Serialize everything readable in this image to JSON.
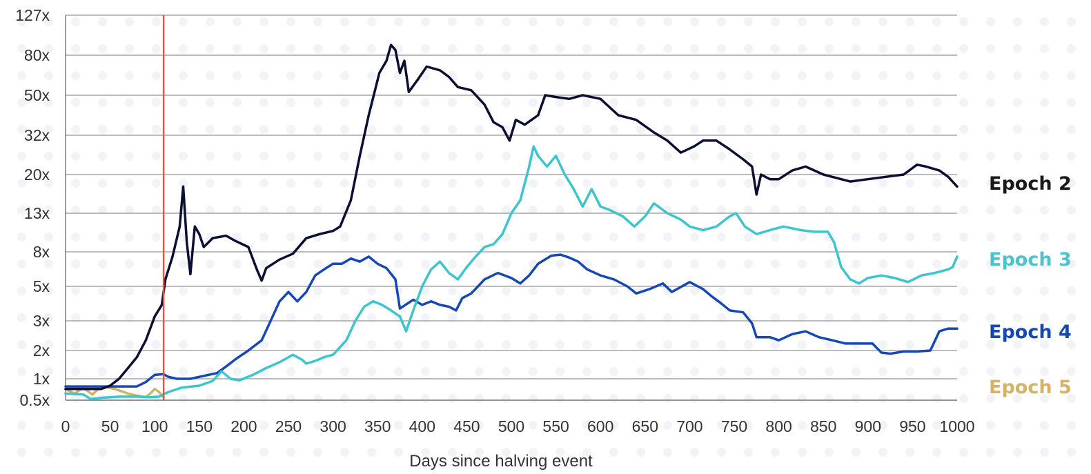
{
  "chart_data": {
    "type": "line",
    "title": "",
    "xlabel": "Days since halving event",
    "ylabel": "",
    "y_scale": "log",
    "xlim": [
      0,
      1000
    ],
    "ylim": [
      0.5,
      127
    ],
    "x_ticks": [
      0,
      50,
      100,
      150,
      200,
      250,
      300,
      350,
      400,
      450,
      500,
      550,
      600,
      650,
      700,
      750,
      800,
      850,
      900,
      950,
      1000
    ],
    "x_tick_labels": [
      "0",
      "50",
      "100",
      "150",
      "200",
      "250",
      "300",
      "350",
      "400",
      "450",
      "500",
      "550",
      "600",
      "650",
      "700",
      "750",
      "800",
      "850",
      "900",
      "950",
      "1000"
    ],
    "y_ticks": [
      0.5,
      1,
      2,
      3,
      5,
      8,
      13,
      20,
      32,
      50,
      80,
      127
    ],
    "y_tick_labels": [
      "0.5x",
      "1x",
      "2x",
      "3x",
      "5x",
      "8x",
      "13x",
      "20x",
      "32x",
      "50x",
      "80x",
      "127x"
    ],
    "grid": true,
    "legend_placement": "right",
    "marker_line": {
      "x": 110,
      "color": "#e05a3a"
    },
    "series": [
      {
        "name": "Epoch 2",
        "color": "#0b0f33",
        "label_color": "#1a1a1a",
        "points": [
          [
            0,
            0.72
          ],
          [
            40,
            0.72
          ],
          [
            50,
            0.8
          ],
          [
            60,
            1.0
          ],
          [
            70,
            1.3
          ],
          [
            80,
            1.7
          ],
          [
            90,
            2.3
          ],
          [
            100,
            3.2
          ],
          [
            108,
            3.8
          ],
          [
            112,
            5.5
          ],
          [
            120,
            7.5
          ],
          [
            128,
            11
          ],
          [
            132,
            17.5
          ],
          [
            136,
            9
          ],
          [
            140,
            5.9
          ],
          [
            145,
            11
          ],
          [
            150,
            10
          ],
          [
            155,
            8.5
          ],
          [
            165,
            9.5
          ],
          [
            180,
            9.8
          ],
          [
            190,
            9.2
          ],
          [
            205,
            8.5
          ],
          [
            215,
            6.2
          ],
          [
            220,
            5.4
          ],
          [
            225,
            6.4
          ],
          [
            240,
            7.2
          ],
          [
            255,
            7.8
          ],
          [
            270,
            9.5
          ],
          [
            285,
            10
          ],
          [
            300,
            10.4
          ],
          [
            308,
            11
          ],
          [
            320,
            15
          ],
          [
            330,
            25
          ],
          [
            340,
            40
          ],
          [
            352,
            65
          ],
          [
            360,
            75
          ],
          [
            365,
            90
          ],
          [
            370,
            85
          ],
          [
            375,
            65
          ],
          [
            380,
            75
          ],
          [
            385,
            52
          ],
          [
            395,
            60
          ],
          [
            405,
            70
          ],
          [
            420,
            67
          ],
          [
            430,
            62
          ],
          [
            440,
            55
          ],
          [
            455,
            53
          ],
          [
            470,
            45
          ],
          [
            480,
            37
          ],
          [
            490,
            35
          ],
          [
            498,
            30
          ],
          [
            505,
            38
          ],
          [
            515,
            36
          ],
          [
            530,
            40
          ],
          [
            538,
            50
          ],
          [
            550,
            49
          ],
          [
            565,
            48
          ],
          [
            580,
            50
          ],
          [
            600,
            48
          ],
          [
            620,
            40
          ],
          [
            640,
            38
          ],
          [
            660,
            33
          ],
          [
            675,
            30
          ],
          [
            690,
            26
          ],
          [
            705,
            28
          ],
          [
            715,
            30
          ],
          [
            730,
            30
          ],
          [
            745,
            27
          ],
          [
            760,
            24
          ],
          [
            770,
            22
          ],
          [
            775,
            16
          ],
          [
            780,
            20
          ],
          [
            790,
            19
          ],
          [
            800,
            19
          ],
          [
            815,
            21
          ],
          [
            830,
            22
          ],
          [
            850,
            20
          ],
          [
            870,
            19
          ],
          [
            880,
            18.5
          ],
          [
            900,
            19
          ],
          [
            920,
            19.5
          ],
          [
            940,
            20
          ],
          [
            955,
            22.5
          ],
          [
            965,
            22
          ],
          [
            980,
            21
          ],
          [
            990,
            19.5
          ],
          [
            1000,
            17.5
          ]
        ]
      },
      {
        "name": "Epoch 3",
        "color": "#3ec4cc",
        "label_color": "#4bc3cd",
        "points": [
          [
            0,
            0.62
          ],
          [
            20,
            0.6
          ],
          [
            28,
            0.52
          ],
          [
            40,
            0.54
          ],
          [
            60,
            0.56
          ],
          [
            80,
            0.56
          ],
          [
            95,
            0.55
          ],
          [
            105,
            0.56
          ],
          [
            115,
            0.65
          ],
          [
            130,
            0.75
          ],
          [
            150,
            0.8
          ],
          [
            165,
            0.93
          ],
          [
            175,
            1.2
          ],
          [
            185,
            1.0
          ],
          [
            195,
            0.95
          ],
          [
            210,
            1.1
          ],
          [
            225,
            1.3
          ],
          [
            240,
            1.5
          ],
          [
            255,
            1.8
          ],
          [
            265,
            1.6
          ],
          [
            270,
            1.45
          ],
          [
            280,
            1.55
          ],
          [
            290,
            1.7
          ],
          [
            300,
            1.8
          ],
          [
            315,
            2.3
          ],
          [
            325,
            3.0
          ],
          [
            335,
            3.7
          ],
          [
            345,
            4.0
          ],
          [
            355,
            3.8
          ],
          [
            365,
            3.5
          ],
          [
            375,
            3.2
          ],
          [
            382,
            2.6
          ],
          [
            390,
            3.5
          ],
          [
            400,
            5.0
          ],
          [
            410,
            6.3
          ],
          [
            420,
            7.0
          ],
          [
            430,
            6.0
          ],
          [
            440,
            5.5
          ],
          [
            450,
            6.5
          ],
          [
            460,
            7.5
          ],
          [
            470,
            8.5
          ],
          [
            480,
            8.8
          ],
          [
            490,
            10
          ],
          [
            500,
            13
          ],
          [
            510,
            15
          ],
          [
            520,
            22
          ],
          [
            525,
            28
          ],
          [
            530,
            25
          ],
          [
            540,
            22
          ],
          [
            550,
            25
          ],
          [
            560,
            20
          ],
          [
            570,
            17
          ],
          [
            580,
            14
          ],
          [
            590,
            17
          ],
          [
            600,
            14
          ],
          [
            610,
            13.5
          ],
          [
            625,
            12.5
          ],
          [
            638,
            11
          ],
          [
            650,
            12.5
          ],
          [
            660,
            14.5
          ],
          [
            675,
            13
          ],
          [
            690,
            12
          ],
          [
            700,
            11
          ],
          [
            715,
            10.5
          ],
          [
            730,
            11
          ],
          [
            745,
            12.5
          ],
          [
            752,
            13
          ],
          [
            762,
            11
          ],
          [
            775,
            10
          ],
          [
            790,
            10.5
          ],
          [
            805,
            11
          ],
          [
            825,
            10.5
          ],
          [
            840,
            10.3
          ],
          [
            855,
            10.3
          ],
          [
            862,
            9
          ],
          [
            870,
            6.5
          ],
          [
            880,
            5.5
          ],
          [
            890,
            5.2
          ],
          [
            900,
            5.6
          ],
          [
            915,
            5.8
          ],
          [
            930,
            5.6
          ],
          [
            945,
            5.3
          ],
          [
            960,
            5.8
          ],
          [
            975,
            6.0
          ],
          [
            990,
            6.3
          ],
          [
            995,
            6.5
          ],
          [
            1000,
            7.5
          ]
        ]
      },
      {
        "name": "Epoch 4",
        "color": "#1548b5",
        "label_color": "#1548b5",
        "points": [
          [
            0,
            0.78
          ],
          [
            20,
            0.78
          ],
          [
            50,
            0.78
          ],
          [
            80,
            0.78
          ],
          [
            90,
            0.9
          ],
          [
            100,
            1.1
          ],
          [
            110,
            1.12
          ],
          [
            115,
            1.05
          ],
          [
            125,
            1.0
          ],
          [
            140,
            1.0
          ],
          [
            160,
            1.1
          ],
          [
            170,
            1.15
          ],
          [
            180,
            1.35
          ],
          [
            190,
            1.6
          ],
          [
            205,
            2.0
          ],
          [
            220,
            2.3
          ],
          [
            230,
            3.0
          ],
          [
            240,
            4.0
          ],
          [
            250,
            4.6
          ],
          [
            260,
            4.0
          ],
          [
            270,
            4.6
          ],
          [
            280,
            5.8
          ],
          [
            290,
            6.3
          ],
          [
            300,
            6.8
          ],
          [
            310,
            6.8
          ],
          [
            320,
            7.3
          ],
          [
            330,
            7.0
          ],
          [
            340,
            7.5
          ],
          [
            350,
            6.8
          ],
          [
            360,
            6.4
          ],
          [
            370,
            5.5
          ],
          [
            375,
            3.6
          ],
          [
            390,
            4.1
          ],
          [
            400,
            3.8
          ],
          [
            410,
            4.0
          ],
          [
            420,
            3.8
          ],
          [
            430,
            3.7
          ],
          [
            438,
            3.5
          ],
          [
            445,
            4.2
          ],
          [
            455,
            4.5
          ],
          [
            470,
            5.5
          ],
          [
            485,
            6.0
          ],
          [
            500,
            5.6
          ],
          [
            510,
            5.2
          ],
          [
            520,
            5.8
          ],
          [
            530,
            6.8
          ],
          [
            545,
            7.6
          ],
          [
            555,
            7.7
          ],
          [
            565,
            7.4
          ],
          [
            575,
            7.0
          ],
          [
            585,
            6.3
          ],
          [
            600,
            5.8
          ],
          [
            615,
            5.5
          ],
          [
            630,
            5.0
          ],
          [
            640,
            4.5
          ],
          [
            655,
            4.8
          ],
          [
            670,
            5.2
          ],
          [
            680,
            4.6
          ],
          [
            700,
            5.3
          ],
          [
            715,
            4.8
          ],
          [
            725,
            4.3
          ],
          [
            735,
            3.9
          ],
          [
            745,
            3.5
          ],
          [
            760,
            3.4
          ],
          [
            770,
            2.9
          ],
          [
            775,
            2.4
          ],
          [
            790,
            2.4
          ],
          [
            800,
            2.3
          ],
          [
            815,
            2.5
          ],
          [
            830,
            2.6
          ],
          [
            845,
            2.4
          ],
          [
            860,
            2.3
          ],
          [
            875,
            2.2
          ],
          [
            890,
            2.2
          ],
          [
            905,
            2.2
          ],
          [
            915,
            1.9
          ],
          [
            925,
            1.85
          ],
          [
            940,
            1.95
          ],
          [
            955,
            1.95
          ],
          [
            970,
            2.0
          ],
          [
            980,
            2.6
          ],
          [
            990,
            2.7
          ],
          [
            1000,
            2.7
          ]
        ]
      },
      {
        "name": "Epoch 5",
        "color": "#d1b463",
        "label_color": "#d4b365",
        "points": [
          [
            0,
            0.72
          ],
          [
            10,
            0.62
          ],
          [
            20,
            0.75
          ],
          [
            30,
            0.6
          ],
          [
            40,
            0.78
          ],
          [
            55,
            0.72
          ],
          [
            70,
            0.62
          ],
          [
            80,
            0.58
          ],
          [
            90,
            0.55
          ],
          [
            95,
            0.62
          ],
          [
            100,
            0.72
          ],
          [
            105,
            0.65
          ],
          [
            108,
            0.58
          ],
          [
            110,
            0.55
          ]
        ]
      }
    ]
  }
}
